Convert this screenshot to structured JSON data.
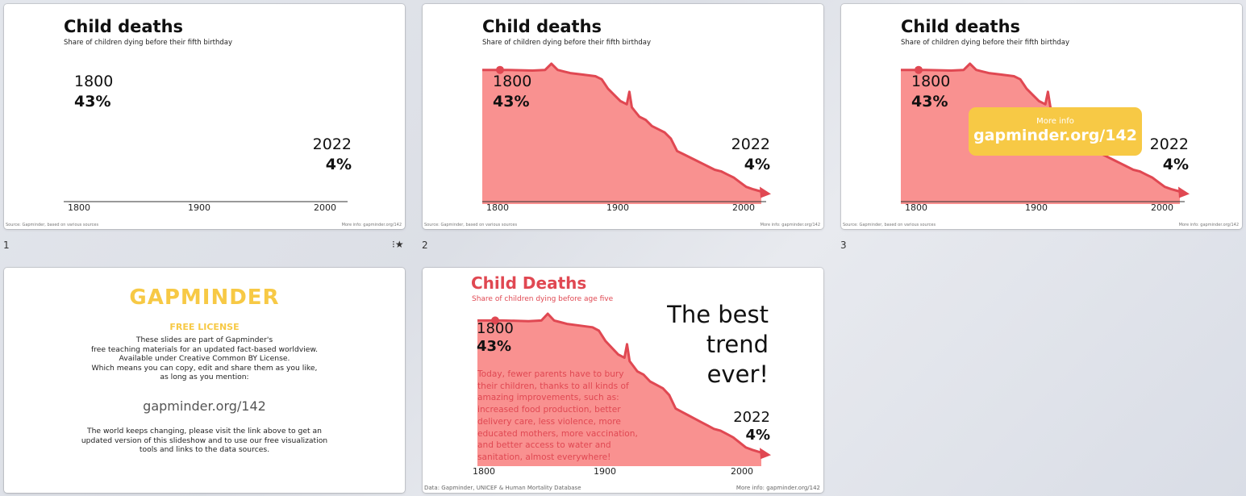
{
  "colors": {
    "red": "#e04852",
    "fill": "#f99190",
    "gold": "#f7c945"
  },
  "slides": [
    {
      "number": "1",
      "title": "Child deaths",
      "subtitle": "Share of children dying before their fifth birthday",
      "start_year": "1800",
      "start_pct": "43%",
      "end_year": "2022",
      "end_pct": "4%",
      "ticks": [
        "1800",
        "1900",
        "2000"
      ],
      "source": "Source: Gapminder, based on various sources",
      "more_info": "More info: gapminder.org/142",
      "starred_icon": "star-icon"
    },
    {
      "number": "2",
      "title": "Child deaths",
      "subtitle": "Share of children dying before their fifth birthday",
      "start_year": "1800",
      "start_pct": "43%",
      "end_year": "2022",
      "end_pct": "4%",
      "ticks": [
        "1800",
        "1900",
        "2000"
      ],
      "source": "Source: Gapminder, based on various sources",
      "more_info": "More info: gapminder.org/142"
    },
    {
      "number": "3",
      "title": "Child deaths",
      "subtitle": "Share of children dying before their fifth birthday",
      "start_year": "1800",
      "start_pct": "43%",
      "end_year": "2022",
      "end_pct": "4%",
      "ticks": [
        "1800",
        "1900",
        "2000"
      ],
      "callout_small": "More info",
      "callout_url": "gapminder.org/142",
      "source": "Source: Gapminder, based on various sources",
      "more_info": "More info: gapminder.org/142"
    },
    {
      "logo": "GAPMINDER",
      "heading": "FREE LICENSE",
      "paragraph": [
        "These slides are part of Gapminder's",
        "free teaching materials for an updated fact-based worldview.",
        "Available under Creative Common BY License.",
        "Which means you can copy, edit and share them as you like,",
        "as long as you mention:"
      ],
      "url": "gapminder.org/142",
      "closing": [
        "The world keeps changing, please visit the link above to get an",
        "updated version of this slideshow and to use our free visualization",
        "tools and links to the data sources."
      ]
    },
    {
      "title": "Child Deaths",
      "subtitle": "Share of children dying before age five",
      "start_year": "1800",
      "start_pct": "43%",
      "end_year": "2022",
      "end_pct": "4%",
      "headline": [
        "The best",
        "trend",
        "ever!"
      ],
      "body": [
        "Today, fewer parents have to bury",
        "their children, thanks to all kinds of",
        "amazing improvements, such as:",
        "increased food production, better",
        "delivery care, less violence, more",
        "educated mothers, more vaccination,",
        "and better access to water and",
        "sanitation, almost everywhere!"
      ],
      "ticks": [
        "1800",
        "1900",
        "2000"
      ],
      "source": "Data: Gapminder, UNICEF & Human Mortality Database",
      "more_info": "More info: gapminder.org/142"
    }
  ],
  "chart_data": {
    "type": "area",
    "title": "Child deaths",
    "x": [
      1800,
      1820,
      1840,
      1850,
      1855,
      1860,
      1865,
      1870,
      1880,
      1890,
      1895,
      1900,
      1905,
      1910,
      1915,
      1917,
      1919,
      1921,
      1925,
      1930,
      1935,
      1940,
      1945,
      1950,
      1955,
      1960,
      1965,
      1970,
      1975,
      1980,
      1985,
      1990,
      1995,
      2000,
      2005,
      2010,
      2015,
      2022
    ],
    "y": [
      43,
      43,
      42.8,
      43,
      45,
      43,
      42.5,
      42,
      41.5,
      41,
      40,
      37,
      35,
      33,
      32,
      36,
      31,
      30,
      28,
      27,
      25,
      24,
      23,
      21,
      17,
      16,
      15,
      14,
      13,
      12,
      11,
      10.5,
      9.5,
      8.5,
      7,
      5.5,
      4.8,
      4
    ],
    "xlim": [
      1800,
      2022
    ],
    "ylim": [
      0,
      45
    ],
    "xticks": [
      "1800",
      "1900",
      "2000"
    ]
  }
}
